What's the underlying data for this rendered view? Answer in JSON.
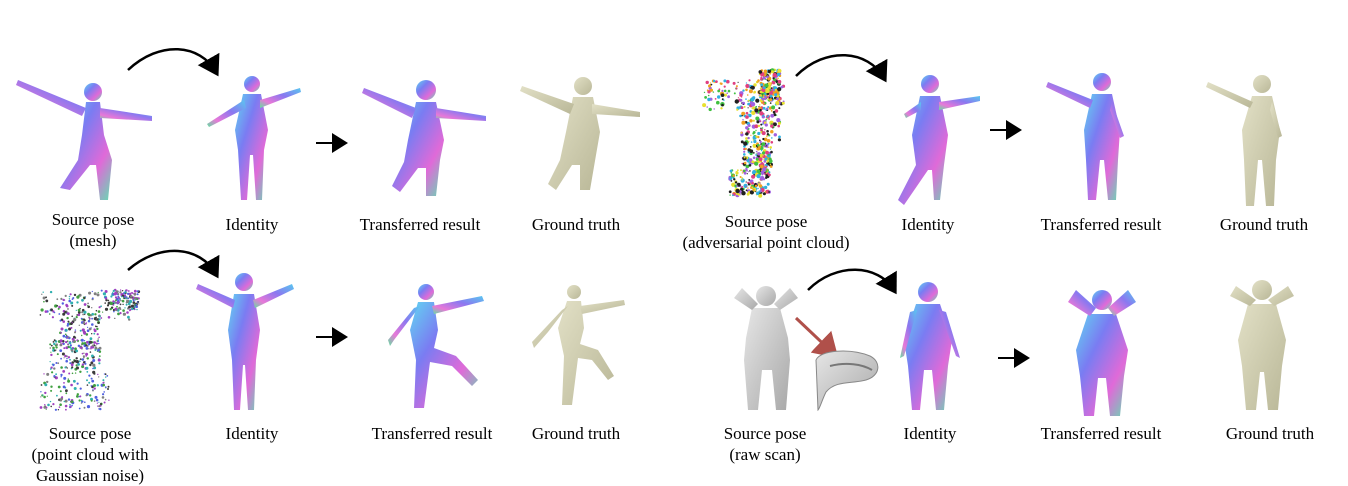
{
  "panels": [
    {
      "source": [
        "Source pose",
        "(mesh)"
      ],
      "identity": "Identity",
      "result": "Transferred result",
      "truth": "Ground truth"
    },
    {
      "source": [
        "Source pose",
        "(adversarial point cloud)"
      ],
      "identity": "Identity",
      "result": "Transferred result",
      "truth": "Ground truth"
    },
    {
      "source": [
        "Source pose",
        "(point cloud with",
        "Gaussian noise)"
      ],
      "identity": "Identity",
      "result": "Transferred result",
      "truth": "Ground truth"
    },
    {
      "source": [
        "Source pose",
        "(raw scan)"
      ],
      "identity": "Identity",
      "result": "Transferred result",
      "truth": "Ground truth"
    }
  ],
  "colors": {
    "normal_a": "#7a7cf2",
    "normal_b": "#e06ad8",
    "normal_c": "#5fe0c8",
    "ground_truth": "#cfcdb0",
    "scan": "#d0d0d0",
    "zoom_arrow": "#b0504a"
  }
}
